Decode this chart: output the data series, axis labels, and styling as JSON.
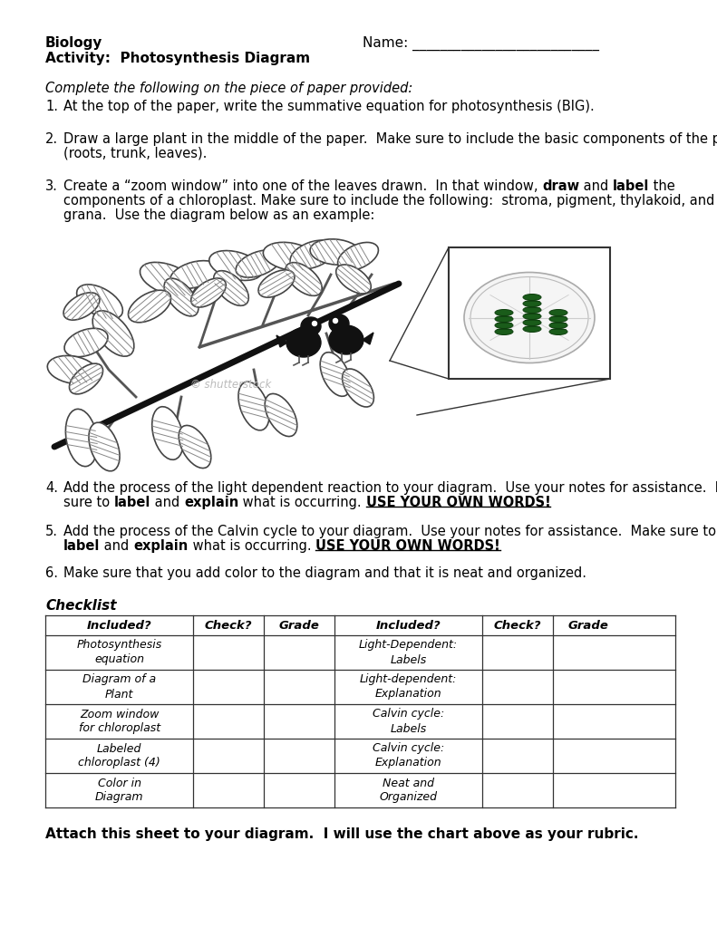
{
  "title_left_line1": "Biology",
  "title_left_line2": "Activity:  Photosynthesis Diagram",
  "title_right": "Name: ___________________________",
  "intro_italic": "Complete the following on the piece of paper provided:",
  "items": [
    {
      "num": "1.",
      "text": "At the top of the paper, write the summative equation for photosynthesis (BIG)."
    },
    {
      "num": "2.",
      "text": "Draw a large plant in the middle of the paper.  Make sure to include the basic components of the plant\n(roots, trunk, leaves)."
    },
    {
      "num": "3.",
      "text_parts": [
        {
          "text": "Create a “zoom window” into one of the leaves drawn.  In that window, ",
          "bold": false
        },
        {
          "text": "draw",
          "bold": true
        },
        {
          "text": " and ",
          "bold": false
        },
        {
          "text": "label",
          "bold": true
        },
        {
          "text": " the\ncomponents of a chloroplast. Make sure to include the following:  stroma, pigment, thylakoid, and\ngrana.  Use the diagram below as an example:",
          "bold": false
        }
      ]
    },
    {
      "num": "4.",
      "line1": "Add the process of the light dependent reaction to your diagram.  Use your notes for assistance.  Make",
      "line2_parts": [
        {
          "text": "sure to ",
          "bold": false
        },
        {
          "text": "label",
          "bold": true
        },
        {
          "text": " and ",
          "bold": false
        },
        {
          "text": "explain",
          "bold": true
        },
        {
          "text": " what is occurring. ",
          "bold": false
        },
        {
          "text": "USE YOUR OWN WORDS!",
          "bold": true,
          "underline": true
        }
      ]
    },
    {
      "num": "5.",
      "line1": "Add the process of the Calvin cycle to your diagram.  Use your notes for assistance.  Make sure to",
      "line2_parts": [
        {
          "text": "label",
          "bold": true
        },
        {
          "text": " and ",
          "bold": false
        },
        {
          "text": "explain",
          "bold": true
        },
        {
          "text": " what is occurring. ",
          "bold": false
        },
        {
          "text": "USE YOUR OWN WORDS!",
          "bold": true,
          "underline": true
        }
      ]
    },
    {
      "num": "6.",
      "text": "Make sure that you add color to the diagram and that it is neat and organized."
    }
  ],
  "checklist_title": "Checklist",
  "table_headers": [
    "Included?",
    "Check?",
    "Grade",
    "Included?",
    "Check?",
    "Grade"
  ],
  "table_rows": [
    [
      "Photosynthesis\nequation",
      "",
      "",
      "Light-Dependent:\nLabels",
      "",
      ""
    ],
    [
      "Diagram of a\nPlant",
      "",
      "",
      "Light-dependent:\nExplanation",
      "",
      ""
    ],
    [
      "Zoom window\nfor chloroplast",
      "",
      "",
      "Calvin cycle:\nLabels",
      "",
      ""
    ],
    [
      "Labeled\nchloroplast (4)",
      "",
      "",
      "Calvin cycle:\nExplanation",
      "",
      ""
    ],
    [
      "Color in\nDiagram",
      "",
      "",
      "Neat and\nOrganized",
      "",
      ""
    ]
  ],
  "footer": "Attach this sheet to your diagram.  I will use the chart above as your rubric.",
  "bg_color": "#ffffff",
  "text_color": "#000000"
}
